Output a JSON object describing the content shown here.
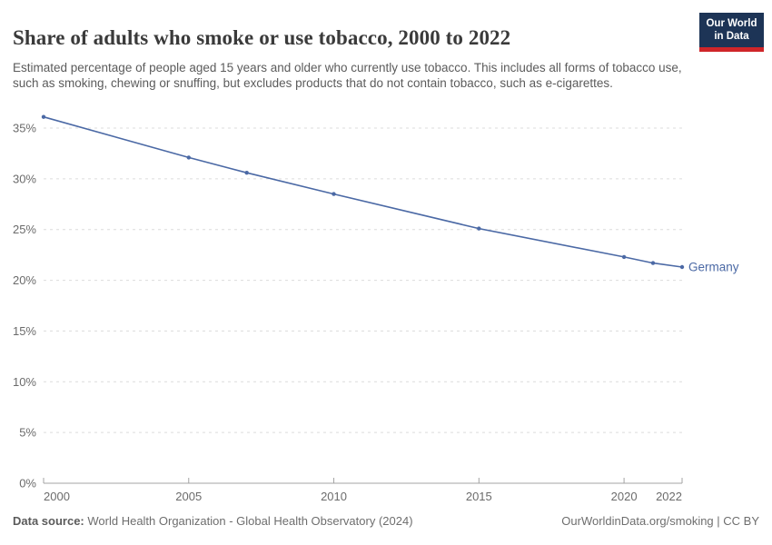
{
  "header": {
    "title": "Share of adults who smoke or use tobacco, 2000 to 2022",
    "subtitle": "Estimated percentage of people aged 15 years and older who currently use tobacco. This includes all forms of tobacco use, such as smoking, chewing or snuffing, but excludes products that do not contain tobacco, such as e-cigarettes.",
    "logo": {
      "line1": "Our World",
      "line2": "in Data",
      "bg_color": "#1d3456",
      "accent_color": "#cf2529"
    }
  },
  "chart_data": {
    "type": "line",
    "title": "Share of adults who smoke or use tobacco, 2000 to 2022",
    "xlabel": "",
    "ylabel": "",
    "xlim": [
      2000,
      2022
    ],
    "ylim": [
      0,
      37
    ],
    "x_ticks": [
      2000,
      2005,
      2010,
      2015,
      2020,
      2022
    ],
    "y_ticks": [
      0,
      5,
      10,
      15,
      20,
      25,
      30,
      35
    ],
    "y_tick_suffix": "%",
    "grid": "horizontal-dashed",
    "legend_position": "end-of-line-label",
    "series": [
      {
        "name": "Germany",
        "color": "#4b69a5",
        "x": [
          2000,
          2005,
          2007,
          2010,
          2015,
          2020,
          2021,
          2022
        ],
        "values": [
          36.1,
          32.1,
          30.6,
          28.5,
          25.1,
          22.3,
          21.7,
          21.3
        ]
      }
    ],
    "colors": {
      "gridline": "#dcdcdc",
      "axis": "#a3a3a3",
      "tick_label": "#6b6b6b"
    }
  },
  "footer": {
    "datasource_label": "Data source:",
    "datasource_text": "World Health Organization - Global Health Observatory (2024)",
    "credit": "OurWorldinData.org/smoking | CC BY"
  }
}
